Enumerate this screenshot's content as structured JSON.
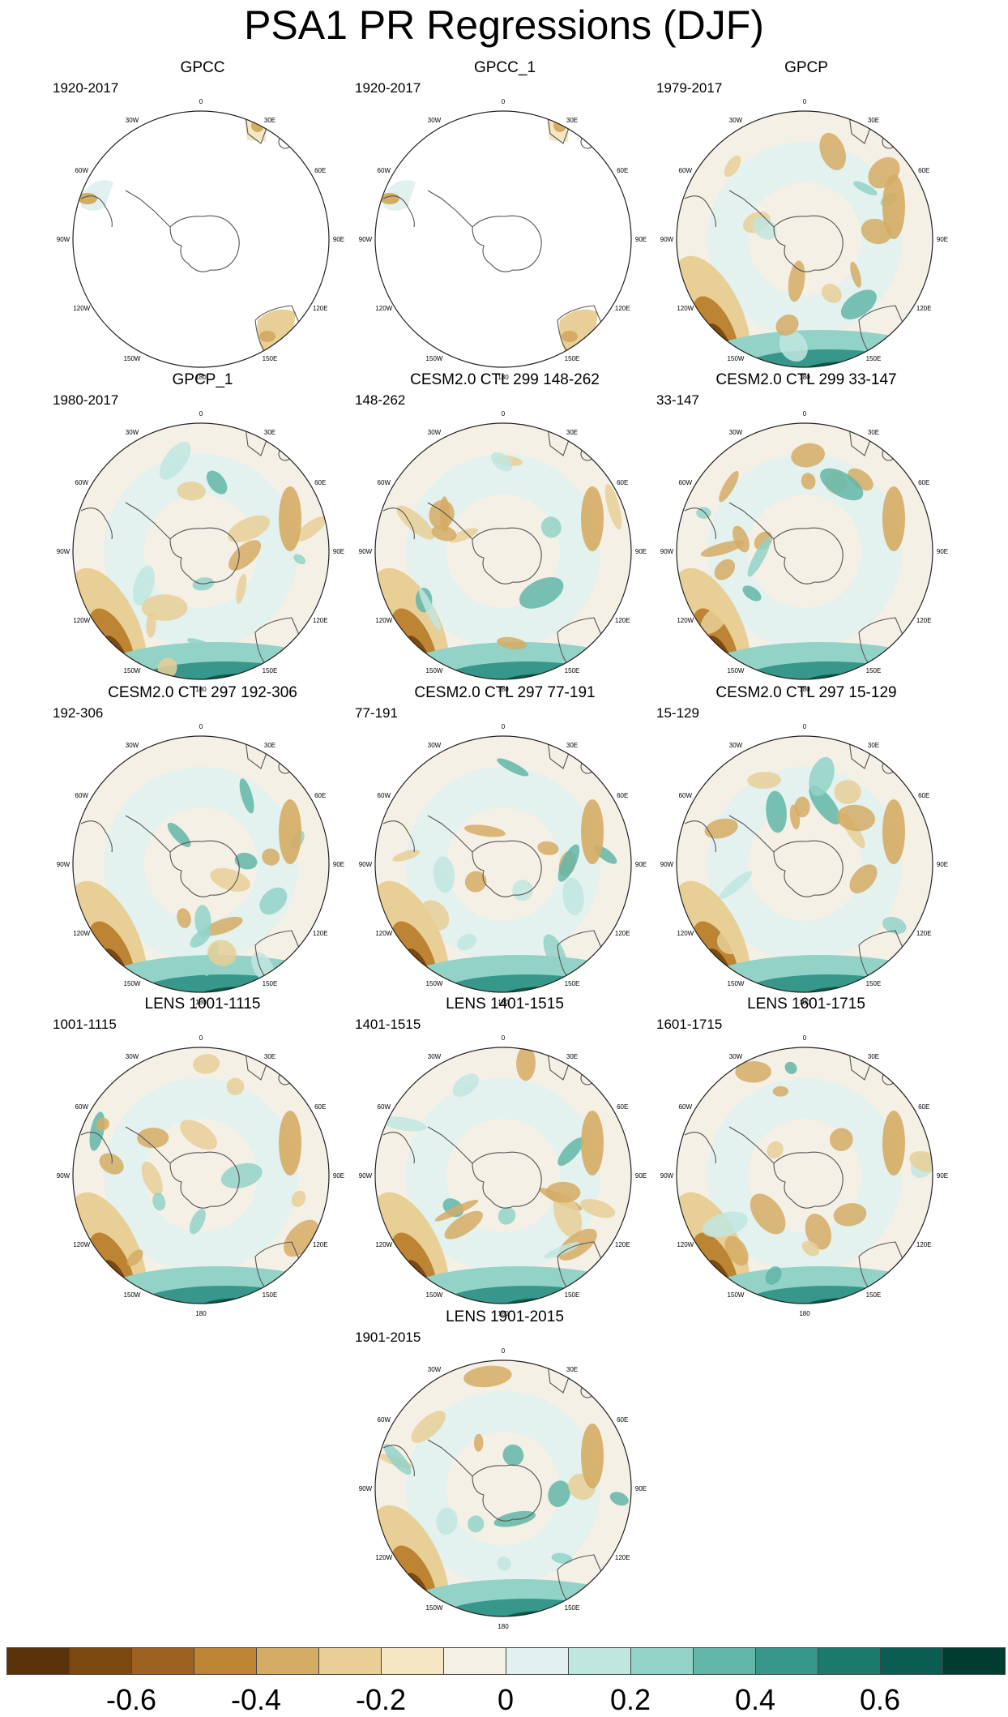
{
  "title": "PSA1 PR Regressions (DJF)",
  "lon_labels": [
    "0",
    "30E",
    "60E",
    "90E",
    "120E",
    "150E",
    "180",
    "150W",
    "120W",
    "90W",
    "60W",
    "30W"
  ],
  "panels": [
    {
      "title": "GPCC",
      "period": "1920-2017",
      "style": "land"
    },
    {
      "title": "GPCC_1",
      "period": "1920-2017",
      "style": "land"
    },
    {
      "title": "GPCP",
      "period": "1979-2017",
      "style": "full"
    },
    {
      "title": "GPCP_1",
      "period": "1980-2017",
      "style": "full"
    },
    {
      "title": "CESM2.0 CTL 299 148-262",
      "period": "148-262",
      "style": "full"
    },
    {
      "title": "CESM2.0 CTL 299 33-147",
      "period": "33-147",
      "style": "full"
    },
    {
      "title": "CESM2.0 CTL 297 192-306",
      "period": "192-306",
      "style": "full"
    },
    {
      "title": "CESM2.0 CTL 297 77-191",
      "period": "77-191",
      "style": "full"
    },
    {
      "title": "CESM2.0 CTL 297 15-129",
      "period": "15-129",
      "style": "full"
    },
    {
      "title": "LENS 1001-1115",
      "period": "1001-1115",
      "style": "full"
    },
    {
      "title": "LENS 1401-1515",
      "period": "1401-1515",
      "style": "full"
    },
    {
      "title": "LENS 1601-1715",
      "period": "1601-1715",
      "style": "full"
    },
    {
      "title": "LENS 1901-2015",
      "period": "1901-2015",
      "style": "full"
    }
  ],
  "colorbar": {
    "colors": [
      "#5a3408",
      "#7c4a10",
      "#9e6220",
      "#bd8434",
      "#d5ac64",
      "#e8cf96",
      "#f5e7c4",
      "#f4f0e6",
      "#e1f1ef",
      "#bfe6df",
      "#92d2c7",
      "#61b6a8",
      "#36978a",
      "#1c7a6c",
      "#0a5d50",
      "#003c30"
    ],
    "labels": [
      "-0.6",
      "-0.4",
      "-0.2",
      "0",
      "0.2",
      "0.4",
      "0.6"
    ]
  }
}
